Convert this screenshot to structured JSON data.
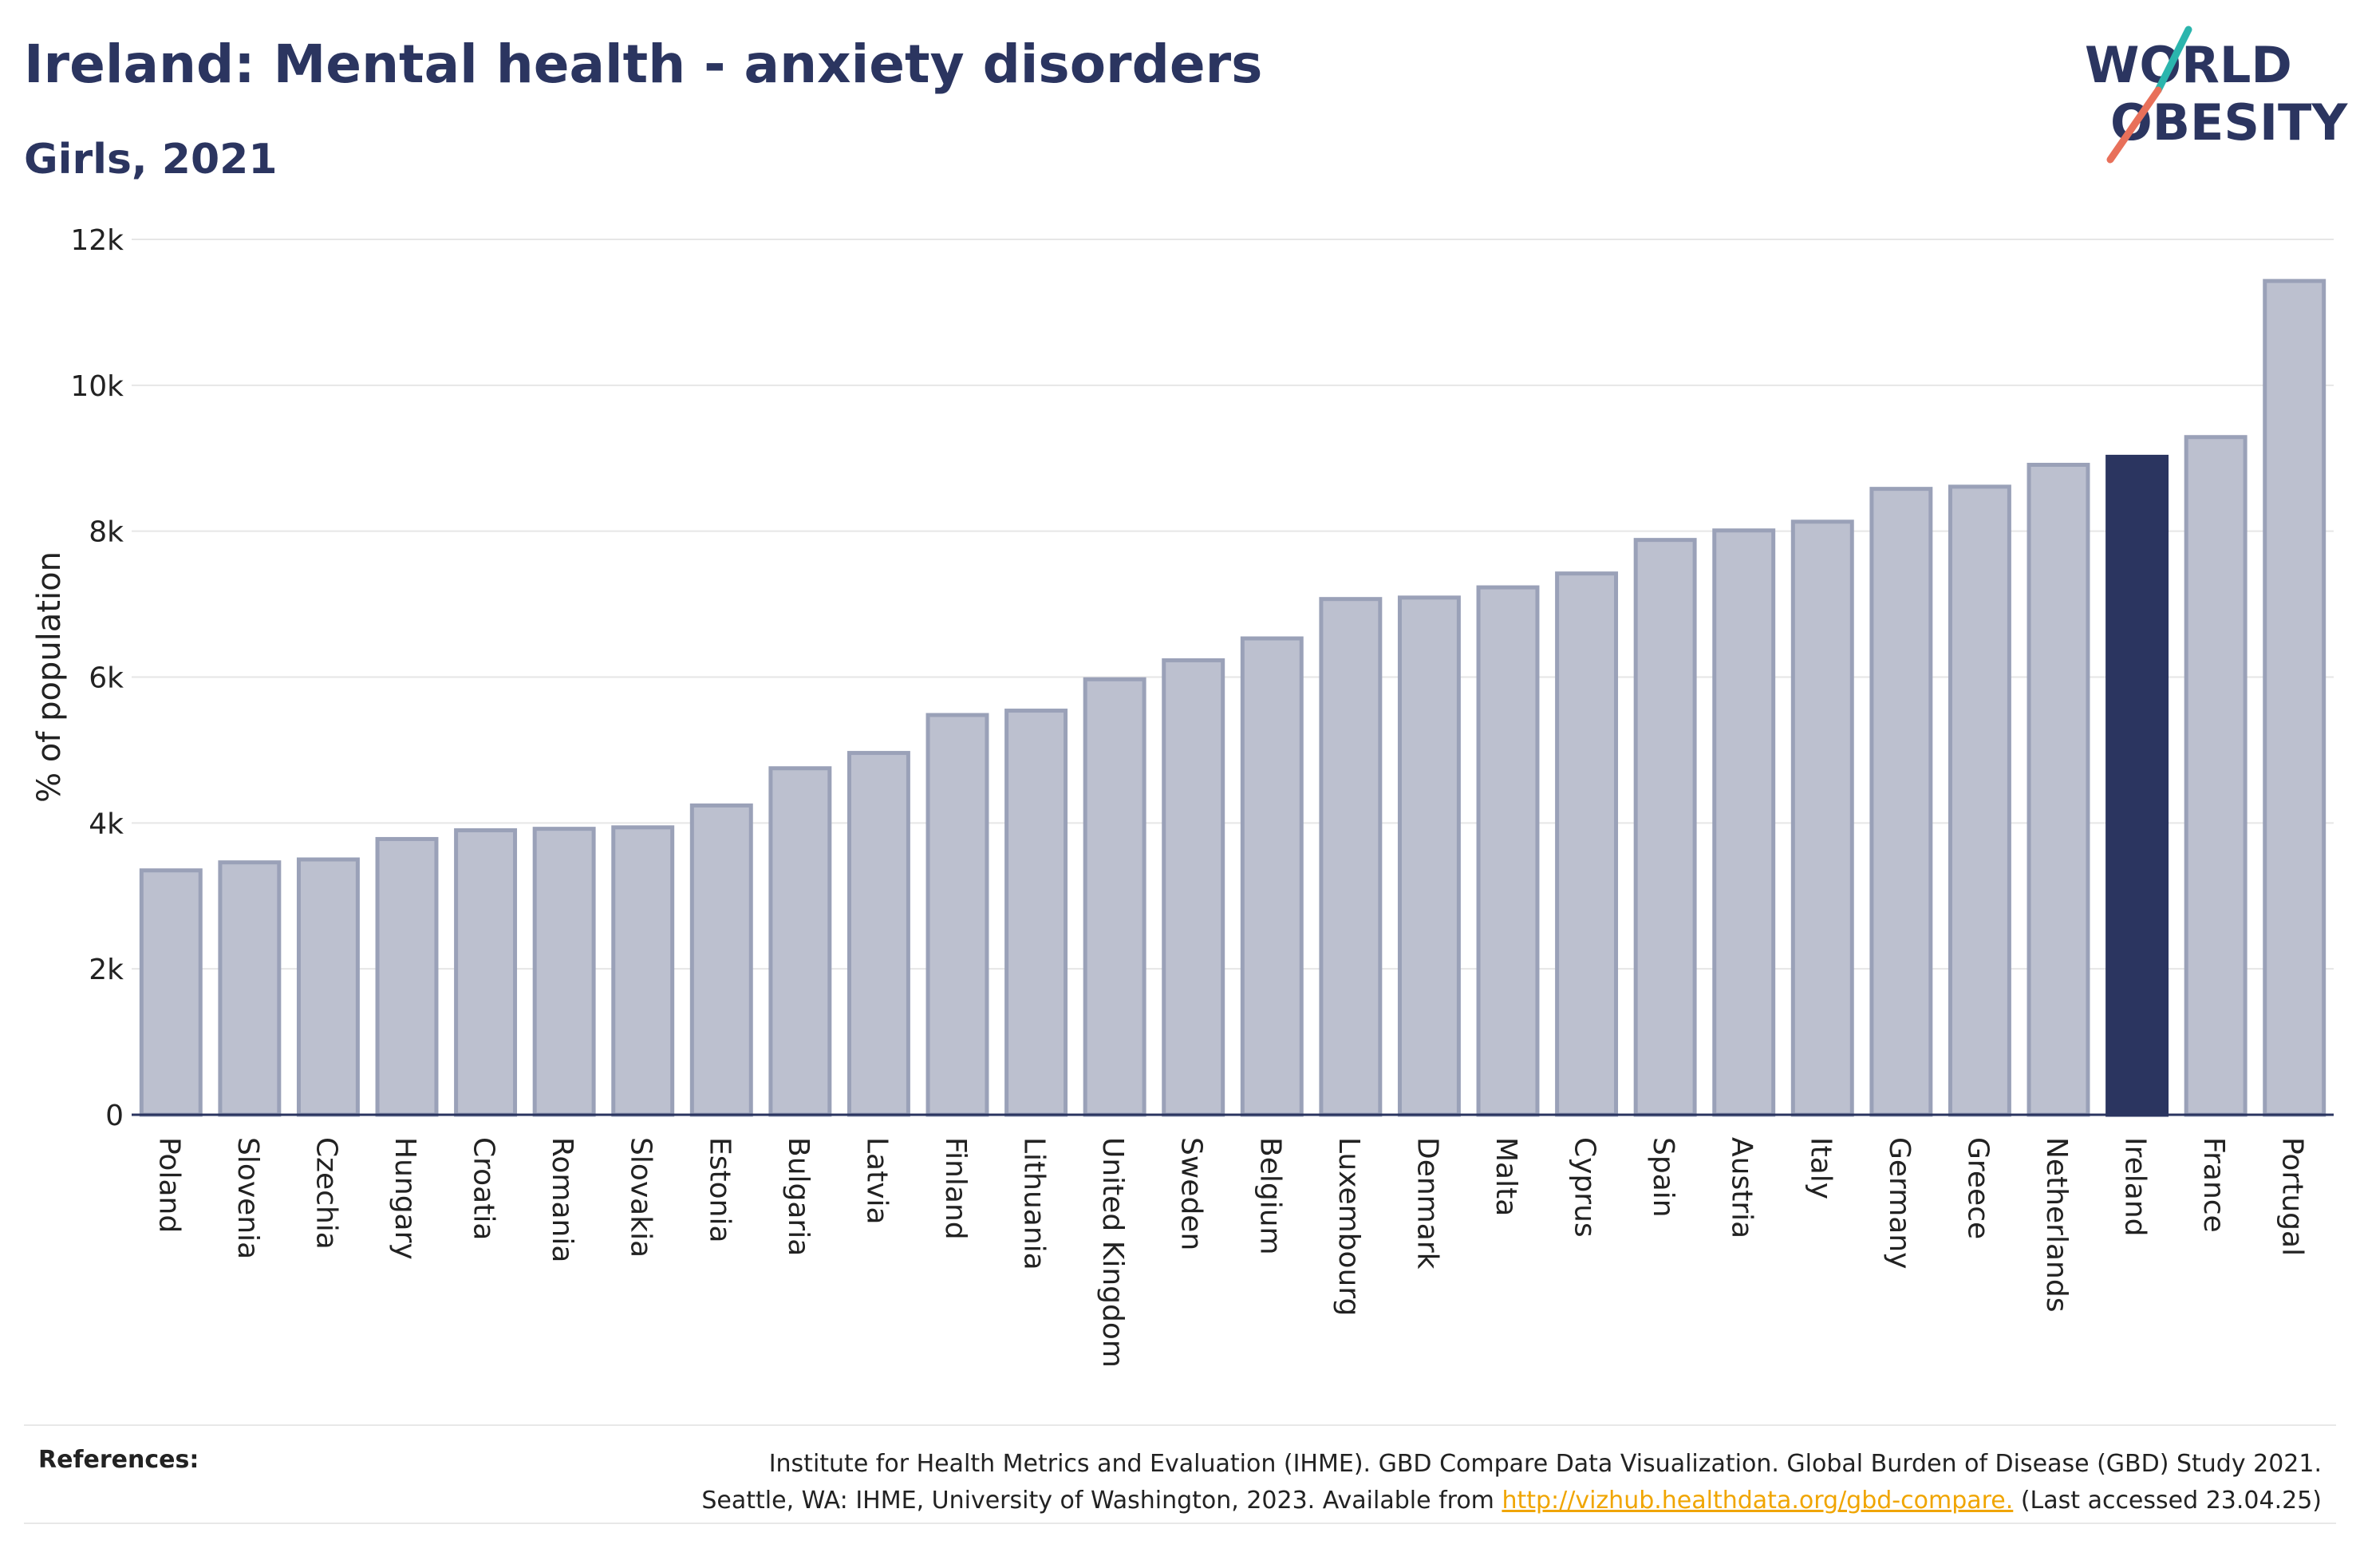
{
  "header": {
    "title": "Ireland: Mental health - anxiety disorders",
    "subtitle": "Girls, 2021"
  },
  "logo": {
    "line1": "WORLD",
    "line2": "OBESITY",
    "accent_teal": "#2bb5ad",
    "accent_coral": "#e8705a"
  },
  "references": {
    "label": "References:",
    "text_line1": "Institute for Health Metrics and Evaluation (IHME). GBD Compare Data Visualization. Global Burden of Disease (GBD) Study 2021.",
    "text_line2_before": "Seattle, WA: IHME, University of Washington, 2023. Available from ",
    "link": "http://vizhub.healthdata.org/gbd-compare.",
    "text_line2_after": " (Last accessed 23.04.25)"
  },
  "colors": {
    "bar": "#bcc0cf",
    "bar_border": "#9aa1b8",
    "highlight": "#2b3560",
    "grid": "#e6e6e6"
  },
  "chart_data": {
    "type": "bar",
    "title": "Ireland: Mental health - anxiety disorders",
    "ylabel": "% of population",
    "ylim": [
      0,
      12000
    ],
    "yticks": [
      0,
      2000,
      4000,
      6000,
      8000,
      10000,
      12000
    ],
    "ytick_labels": [
      "0",
      "2k",
      "4k",
      "6k",
      "8k",
      "10k",
      "12k"
    ],
    "highlight": "Ireland",
    "categories": [
      "Poland",
      "Slovenia",
      "Czechia",
      "Hungary",
      "Croatia",
      "Romania",
      "Slovakia",
      "Estonia",
      "Bulgaria",
      "Latvia",
      "Finland",
      "Lithuania",
      "United Kingdom",
      "Sweden",
      "Belgium",
      "Luxembourg",
      "Denmark",
      "Malta",
      "Cyprus",
      "Spain",
      "Austria",
      "Italy",
      "Germany",
      "Greece",
      "Netherlands",
      "Ireland",
      "France",
      "Portugal"
    ],
    "values": [
      3350,
      3460,
      3500,
      3780,
      3900,
      3920,
      3940,
      4240,
      4750,
      4960,
      5480,
      5540,
      5970,
      6230,
      6530,
      7070,
      7090,
      7230,
      7420,
      7880,
      8010,
      8130,
      8580,
      8610,
      8910,
      9020,
      9290,
      11430
    ]
  }
}
